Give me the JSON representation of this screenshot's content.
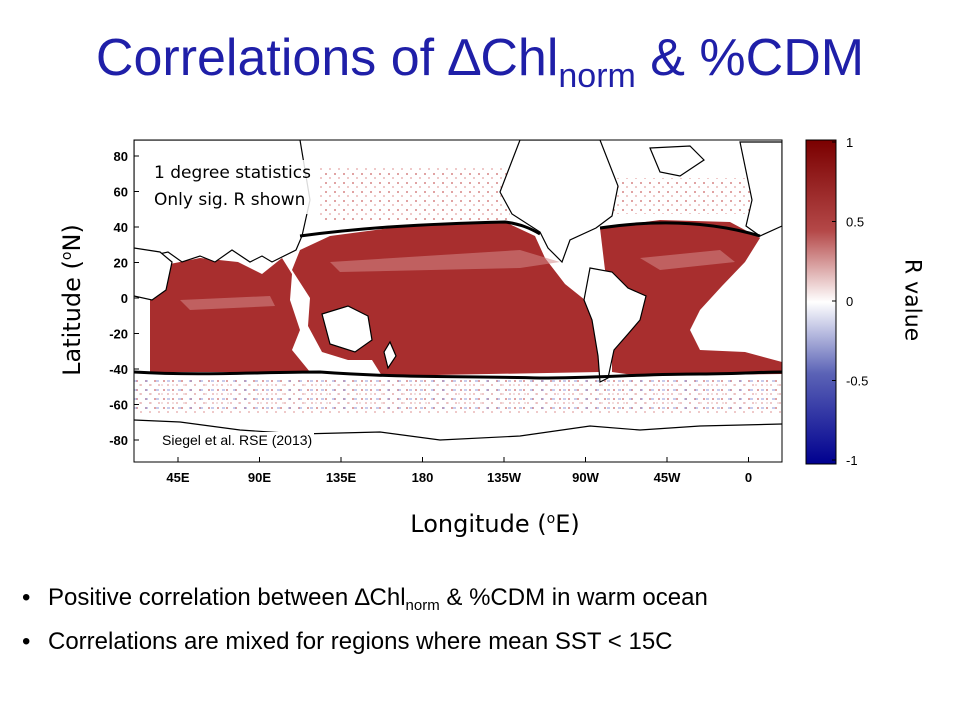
{
  "title": {
    "main": "Correlations of ",
    "delta": "∆",
    "var": "Chl",
    "sub": "norm",
    "rest": " & %CDM"
  },
  "map": {
    "annotation_lines": [
      "1 degree statistics",
      "Only sig. R shown"
    ],
    "citation": "Siegel et al. RSE (2013)",
    "ylabel": {
      "pre": "Latitude (",
      "sup": "o",
      "post": "N)"
    },
    "xlabel": {
      "pre": "Longitude (",
      "sup": "o",
      "post": "E)"
    },
    "lat_ticks": [
      "80",
      "60",
      "40",
      "20",
      "0",
      "-20",
      "-40",
      "-60",
      "-80"
    ],
    "lon_ticks": [
      "45E",
      "90E",
      "135E",
      "180",
      "135W",
      "90W",
      "45W",
      "0"
    ],
    "colors": {
      "positive": "#a82e2e",
      "negative": "#8c95d8",
      "land": "#ffffff",
      "contour": "#000000"
    }
  },
  "colorbar": {
    "label": "R value",
    "ticks": [
      "1",
      "0.5",
      "0",
      "-0.5",
      "-1"
    ],
    "range": [
      -1,
      1
    ],
    "colors": {
      "high": "#7a0000",
      "mid": "#ffffff",
      "low": "#00008f"
    }
  },
  "bullets": [
    {
      "pre": "Positive correlation between ",
      "delta": "∆",
      "var": "Chl",
      "sub": "norm",
      "post": " & %CDM in warm ocean"
    },
    {
      "pre": "Correlations are mixed for regions where mean SST < 15C"
    }
  ]
}
